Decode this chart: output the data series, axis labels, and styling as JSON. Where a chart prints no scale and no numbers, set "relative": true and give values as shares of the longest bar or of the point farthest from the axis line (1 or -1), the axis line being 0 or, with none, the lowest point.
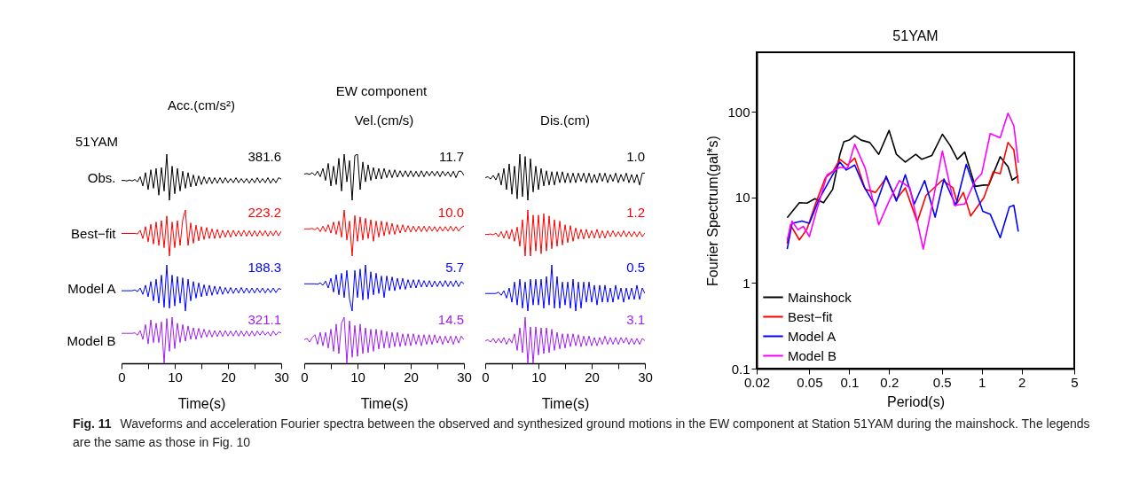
{
  "chart_data": [
    {
      "type": "other",
      "title": "EW component"
    },
    {
      "type": "line",
      "relative": true,
      "title": "Acc.(cm/s²)",
      "ylabel": "Obs.",
      "annotations": [
        "51YAM",
        "381.6"
      ],
      "tick_labels": false,
      "categories": [
        null,
        null,
        null,
        null,
        null,
        null,
        null,
        null,
        null,
        null,
        null,
        null,
        null,
        null,
        null,
        null,
        null,
        null,
        null,
        null,
        null,
        null,
        null,
        null,
        null,
        null,
        null,
        null,
        null,
        null,
        null,
        null,
        null,
        null,
        null,
        null,
        null,
        null,
        null,
        null,
        null,
        null,
        null,
        null,
        null,
        null,
        null,
        null,
        null,
        null,
        null,
        null,
        null,
        null,
        null,
        null,
        null,
        null,
        null,
        null,
        null
      ],
      "series": [
        {
          "color": "#000000",
          "values": [
            0.43,
            0.43,
            0.42,
            0.44,
            0.42,
            0.45,
            0.4,
            0.51,
            0.31,
            0.6,
            0.23,
            0.66,
            0.26,
            0.69,
            0.11,
            0.71,
            0.2,
            1,
            0,
            0.74,
            0.14,
            0.69,
            0.2,
            0.63,
            0.26,
            0.6,
            0.29,
            0.55,
            0.31,
            0.53,
            0.34,
            0.51,
            0.36,
            0.5,
            0.36,
            0.49,
            0.37,
            0.49,
            0.37,
            0.49,
            0.38,
            0.47,
            0.38,
            0.49,
            0.38,
            0.47,
            0.38,
            0.47,
            0.37,
            0.47,
            0.38,
            0.49,
            0.38,
            0.47,
            0.38,
            0.49,
            0.37,
            0.47,
            0.38,
            0.49,
            0.46
          ]
        }
      ]
    },
    {
      "type": "line",
      "relative": true,
      "title": "Vel.(cm/s)",
      "annotations": [
        "11.7"
      ],
      "tick_labels": false,
      "categories": [
        null,
        null,
        null,
        null,
        null,
        null,
        null,
        null,
        null,
        null,
        null,
        null,
        null,
        null,
        null,
        null,
        null,
        null,
        null,
        null,
        null,
        null,
        null,
        null,
        null,
        null,
        null,
        null,
        null,
        null,
        null,
        null,
        null,
        null,
        null,
        null,
        null,
        null,
        null,
        null,
        null,
        null,
        null,
        null,
        null,
        null,
        null,
        null,
        null,
        null,
        null,
        null,
        null,
        null,
        null,
        null,
        null,
        null,
        null,
        null,
        null
      ],
      "series": [
        {
          "color": "#000000",
          "values": [
            0.57,
            0.58,
            0.56,
            0.6,
            0.54,
            0.63,
            0.51,
            0.69,
            0.43,
            0.8,
            0.31,
            0.74,
            0.34,
            0.91,
            0.2,
            1,
            0.4,
            0.86,
            0,
            0.97,
            1,
            0.23,
            0.83,
            0.4,
            0.77,
            0.43,
            0.71,
            0.46,
            0.69,
            0.46,
            0.69,
            0.49,
            0.66,
            0.49,
            0.66,
            0.5,
            0.64,
            0.51,
            0.64,
            0.51,
            0.64,
            0.51,
            0.63,
            0.51,
            0.64,
            0.51,
            0.63,
            0.53,
            0.63,
            0.53,
            0.63,
            0.51,
            0.63,
            0.53,
            0.62,
            0.51,
            0.63,
            0.49,
            0.63,
            0.63,
            0.54
          ]
        }
      ]
    },
    {
      "type": "line",
      "relative": true,
      "title": "Dis.(cm)",
      "annotations": [
        "1.0"
      ],
      "tick_labels": false,
      "categories": [
        null,
        null,
        null,
        null,
        null,
        null,
        null,
        null,
        null,
        null,
        null,
        null,
        null,
        null,
        null,
        null,
        null,
        null,
        null,
        null,
        null,
        null,
        null,
        null,
        null,
        null,
        null,
        null,
        null,
        null,
        null,
        null,
        null,
        null,
        null,
        null,
        null,
        null,
        null,
        null,
        null,
        null,
        null,
        null,
        null,
        null,
        null,
        null,
        null,
        null,
        null,
        null,
        null,
        null,
        null,
        null,
        null,
        null,
        null,
        null,
        null
      ],
      "series": [
        {
          "color": "#000000",
          "values": [
            0.49,
            0.51,
            0.46,
            0.54,
            0.44,
            0.59,
            0.33,
            0.69,
            0.23,
            0.79,
            0.13,
            0.74,
            0.03,
            1,
            0.08,
            0.95,
            0,
            0.9,
            0.18,
            0.74,
            0.23,
            0.69,
            0.31,
            0.64,
            0.33,
            0.62,
            0.33,
            0.62,
            0.38,
            0.62,
            0.38,
            0.59,
            0.38,
            0.59,
            0.38,
            0.59,
            0.41,
            0.59,
            0.38,
            0.59,
            0.38,
            0.56,
            0.38,
            0.59,
            0.41,
            0.59,
            0.38,
            0.56,
            0.41,
            0.59,
            0.38,
            0.56,
            0.41,
            0.59,
            0.38,
            0.56,
            0.38,
            0.56,
            0.33,
            0.59,
            0.59
          ]
        }
      ]
    },
    {
      "type": "line",
      "relative": true,
      "ylabel": "Best−fit",
      "annotations": [
        "223.2"
      ],
      "tick_labels": false,
      "categories": [
        null,
        null,
        null,
        null,
        null,
        null,
        null,
        null,
        null,
        null,
        null,
        null,
        null,
        null,
        null,
        null,
        null,
        null,
        null,
        null,
        null,
        null,
        null,
        null,
        null,
        null,
        null,
        null,
        null,
        null,
        null,
        null,
        null,
        null,
        null,
        null,
        null,
        null,
        null,
        null,
        null,
        null,
        null,
        null,
        null,
        null,
        null,
        null,
        null,
        null,
        null,
        null,
        null,
        null,
        null,
        null,
        null,
        null,
        null,
        null,
        null
      ],
      "series": [
        {
          "color": "#ff0000",
          "values": [
            0.49,
            0.49,
            0.49,
            0.49,
            0.49,
            0.49,
            0.48,
            0.56,
            0.38,
            0.64,
            0.31,
            0.69,
            0.26,
            0.74,
            0.23,
            0.77,
            0.18,
            0.87,
            0,
            0.74,
            0.18,
            0.77,
            0.23,
            0.79,
            1,
            0.23,
            0.72,
            0.28,
            0.67,
            0.33,
            0.64,
            0.36,
            0.62,
            0.38,
            0.59,
            0.38,
            0.58,
            0.39,
            0.56,
            0.41,
            0.56,
            0.41,
            0.56,
            0.43,
            0.55,
            0.43,
            0.56,
            0.43,
            0.55,
            0.43,
            0.55,
            0.43,
            0.55,
            0.44,
            0.55,
            0.43,
            0.54,
            0.44,
            0.55,
            0.44,
            0.54
          ]
        }
      ]
    },
    {
      "type": "line",
      "relative": true,
      "annotations": [
        "10.0"
      ],
      "tick_labels": false,
      "categories": [
        null,
        null,
        null,
        null,
        null,
        null,
        null,
        null,
        null,
        null,
        null,
        null,
        null,
        null,
        null,
        null,
        null,
        null,
        null,
        null,
        null,
        null,
        null,
        null,
        null,
        null,
        null,
        null,
        null,
        null,
        null,
        null,
        null,
        null,
        null,
        null,
        null,
        null,
        null,
        null,
        null,
        null,
        null,
        null,
        null,
        null,
        null,
        null,
        null,
        null,
        null,
        null,
        null,
        null,
        null,
        null,
        null,
        null,
        null,
        null,
        null
      ],
      "series": [
        {
          "color": "#ff0000",
          "values": [
            0.59,
            0.59,
            0.59,
            0.6,
            0.57,
            0.62,
            0.53,
            0.65,
            0.53,
            0.68,
            0.5,
            0.74,
            0.47,
            0.76,
            0.41,
            1,
            0.35,
            0.76,
            0,
            0.88,
            0.32,
            0.85,
            0.35,
            0.82,
            0.38,
            0.79,
            0.32,
            0.76,
            0.41,
            0.76,
            0.44,
            0.74,
            0.47,
            0.71,
            0.47,
            0.68,
            0.5,
            0.68,
            0.52,
            0.66,
            0.52,
            0.65,
            0.53,
            0.65,
            0.53,
            0.65,
            0.53,
            0.65,
            0.54,
            0.64,
            0.53,
            0.64,
            0.54,
            0.64,
            0.54,
            0.65,
            0.54,
            0.64,
            0.54,
            0.62,
            0.65
          ]
        }
      ]
    },
    {
      "type": "line",
      "relative": true,
      "annotations": [
        "1.2"
      ],
      "tick_labels": false,
      "categories": [
        null,
        null,
        null,
        null,
        null,
        null,
        null,
        null,
        null,
        null,
        null,
        null,
        null,
        null,
        null,
        null,
        null,
        null,
        null,
        null,
        null,
        null,
        null,
        null,
        null,
        null,
        null,
        null,
        null,
        null,
        null,
        null,
        null,
        null,
        null,
        null,
        null,
        null,
        null,
        null,
        null,
        null,
        null,
        null,
        null,
        null,
        null,
        null,
        null,
        null,
        null,
        null,
        null,
        null,
        null,
        null,
        null,
        null,
        null,
        null,
        null
      ],
      "series": [
        {
          "color": "#ff0000",
          "values": [
            0.47,
            0.47,
            0.48,
            0.46,
            0.5,
            0.42,
            0.53,
            0.39,
            0.55,
            0.37,
            0.58,
            0.32,
            0.63,
            0.21,
            0.79,
            0,
            1,
            0,
            0.89,
            0.11,
            0.89,
            0.05,
            0.92,
            0.11,
            0.87,
            0.16,
            0.79,
            0.21,
            0.76,
            0.24,
            0.68,
            0.29,
            0.66,
            0.32,
            0.61,
            0.37,
            0.58,
            0.37,
            0.58,
            0.39,
            0.55,
            0.39,
            0.58,
            0.39,
            0.55,
            0.39,
            0.55,
            0.42,
            0.55,
            0.42,
            0.53,
            0.42,
            0.55,
            0.42,
            0.53,
            0.42,
            0.53,
            0.42,
            0.53,
            0.42,
            0.5
          ]
        }
      ]
    },
    {
      "type": "line",
      "relative": true,
      "ylabel": "Model A",
      "annotations": [
        "188.3"
      ],
      "tick_labels": false,
      "categories": [
        null,
        null,
        null,
        null,
        null,
        null,
        null,
        null,
        null,
        null,
        null,
        null,
        null,
        null,
        null,
        null,
        null,
        null,
        null,
        null,
        null,
        null,
        null,
        null,
        null,
        null,
        null,
        null,
        null,
        null,
        null,
        null,
        null,
        null,
        null,
        null,
        null,
        null,
        null,
        null,
        null,
        null,
        null,
        null,
        null,
        null,
        null,
        null,
        null,
        null,
        null,
        null,
        null,
        null,
        null,
        null,
        null,
        null,
        null,
        null,
        null
      ],
      "series": [
        {
          "color": "#0000ff",
          "values": [
            0.44,
            0.44,
            0.44,
            0.44,
            0.44,
            0.46,
            0.42,
            0.5,
            0.36,
            0.56,
            0.31,
            0.64,
            0.22,
            0.69,
            0.17,
            0.78,
            0.08,
            1,
            0.06,
            0.78,
            0.11,
            0.75,
            0.17,
            0.72,
            0,
            0.69,
            0.22,
            0.64,
            0.28,
            0.61,
            0.31,
            0.57,
            0.33,
            0.56,
            0.34,
            0.54,
            0.36,
            0.53,
            0.36,
            0.51,
            0.38,
            0.51,
            0.38,
            0.5,
            0.39,
            0.51,
            0.39,
            0.5,
            0.39,
            0.5,
            0.39,
            0.5,
            0.4,
            0.5,
            0.39,
            0.49,
            0.4,
            0.5,
            0.4,
            0.49,
            0.47
          ]
        }
      ]
    },
    {
      "type": "line",
      "relative": true,
      "annotations": [
        "5.7"
      ],
      "tick_labels": false,
      "categories": [
        null,
        null,
        null,
        null,
        null,
        null,
        null,
        null,
        null,
        null,
        null,
        null,
        null,
        null,
        null,
        null,
        null,
        null,
        null,
        null,
        null,
        null,
        null,
        null,
        null,
        null,
        null,
        null,
        null,
        null,
        null,
        null,
        null,
        null,
        null,
        null,
        null,
        null,
        null,
        null,
        null,
        null,
        null,
        null,
        null,
        null,
        null,
        null,
        null,
        null,
        null,
        null,
        null,
        null,
        null,
        null,
        null,
        null,
        null,
        null,
        null
      ],
      "series": [
        {
          "color": "#0000ff",
          "values": [
            0.59,
            0.59,
            0.59,
            0.59,
            0.59,
            0.58,
            0.61,
            0.56,
            0.65,
            0.5,
            0.71,
            0.41,
            0.79,
            0.35,
            0.82,
            0.29,
            0.88,
            0.26,
            0,
            0.88,
            0.29,
            0.91,
            0.24,
            1,
            0.26,
            0.85,
            0.35,
            0.82,
            0.38,
            0.76,
            0.29,
            0.76,
            0.44,
            0.74,
            0.44,
            0.71,
            0.47,
            0.71,
            0.47,
            0.68,
            0.5,
            0.68,
            0.5,
            0.68,
            0.52,
            0.66,
            0.52,
            0.66,
            0.52,
            0.65,
            0.53,
            0.65,
            0.53,
            0.66,
            0.53,
            0.65,
            0.53,
            0.66,
            0.53,
            0.64,
            0.59
          ]
        }
      ]
    },
    {
      "type": "line",
      "relative": true,
      "annotations": [
        "0.5"
      ],
      "tick_labels": false,
      "categories": [
        null,
        null,
        null,
        null,
        null,
        null,
        null,
        null,
        null,
        null,
        null,
        null,
        null,
        null,
        null,
        null,
        null,
        null,
        null,
        null,
        null,
        null,
        null,
        null,
        null,
        null,
        null,
        null,
        null,
        null,
        null,
        null,
        null,
        null,
        null,
        null,
        null,
        null,
        null,
        null,
        null,
        null,
        null,
        null,
        null,
        null,
        null,
        null,
        null,
        null,
        null,
        null,
        null,
        null,
        null,
        null,
        null,
        null,
        null,
        null,
        null
      ],
      "series": [
        {
          "color": "#0000ff",
          "values": [
            0.38,
            0.38,
            0.38,
            0.38,
            0.38,
            0.41,
            0.34,
            0.44,
            0.28,
            0.5,
            0.19,
            0.63,
            0.13,
            0.69,
            0.06,
            0.63,
            0,
            0.69,
            0.13,
            0.69,
            0.13,
            0.69,
            0.06,
            0.75,
            0.13,
            1,
            0.06,
            0.75,
            0.06,
            0.63,
            0.13,
            0.63,
            0.06,
            0.69,
            0,
            0.63,
            0.06,
            0.63,
            0.19,
            0.63,
            0.19,
            0.56,
            0.13,
            0.56,
            0.19,
            0.56,
            0.19,
            0.5,
            0.19,
            0.56,
            0.25,
            0.5,
            0.19,
            0.5,
            0.25,
            0.5,
            0.25,
            0.56,
            0.25,
            0.5,
            0.38
          ]
        }
      ]
    },
    {
      "type": "line",
      "relative": true,
      "ylabel": "Model B",
      "annotations": [
        "321.1"
      ],
      "xlim": [
        0,
        30
      ],
      "xticks": [
        0,
        {
          "value": 5,
          "label": null
        },
        10,
        {
          "value": 15,
          "label": null
        },
        20,
        {
          "value": 25,
          "label": null
        },
        30
      ],
      "xlabel": "Time(s)",
      "tick_labels": "x",
      "x": [
        0,
        0.5,
        1,
        1.5,
        2,
        2.5,
        3,
        3.5,
        4,
        4.5,
        5,
        5.5,
        6,
        6.5,
        7,
        7.5,
        8,
        8.5,
        9,
        9.5,
        10,
        10.5,
        11,
        11.5,
        12,
        12.5,
        13,
        13.5,
        14,
        14.5,
        15,
        15.5,
        16,
        16.5,
        17,
        17.5,
        18,
        18.5,
        19,
        19.5,
        20,
        20.5,
        21,
        21.5,
        22,
        22.5,
        23,
        23.5,
        24,
        24.5,
        25,
        25.5,
        26,
        26.5,
        27,
        27.5,
        28,
        28.5,
        29,
        29.5,
        30
      ],
      "series": [
        {
          "color": "#a020f0",
          "values": [
            0.65,
            0.65,
            0.65,
            0.65,
            0.65,
            0.66,
            0.61,
            0.71,
            0.52,
            0.84,
            0.42,
            0.94,
            0.45,
            0.87,
            0.45,
            0.9,
            0,
            0.97,
            0.26,
            1,
            0.32,
            0.87,
            0.45,
            0.84,
            0.48,
            0.81,
            0.52,
            0.77,
            0.52,
            0.76,
            0.55,
            0.74,
            0.57,
            0.72,
            0.57,
            0.71,
            0.58,
            0.71,
            0.58,
            0.71,
            0.59,
            0.7,
            0.59,
            0.71,
            0.59,
            0.7,
            0.59,
            0.7,
            0.59,
            0.7,
            0.59,
            0.7,
            0.61,
            0.7,
            0.61,
            0.68,
            0.59,
            0.7,
            0.61,
            0.68,
            0.66
          ]
        }
      ]
    },
    {
      "type": "line",
      "relative": true,
      "annotations": [
        "14.5"
      ],
      "xlim": [
        0,
        30
      ],
      "xticks": [
        0,
        {
          "value": 5,
          "label": null
        },
        10,
        {
          "value": 15,
          "label": null
        },
        20,
        {
          "value": 25,
          "label": null
        },
        30
      ],
      "xlabel": "Time(s)",
      "tick_labels": "x",
      "x": [
        0,
        0.5,
        1,
        1.5,
        2,
        2.5,
        3,
        3.5,
        4,
        4.5,
        5,
        5.5,
        6,
        6.5,
        7,
        7.5,
        8,
        8.5,
        9,
        9.5,
        10,
        10.5,
        11,
        11.5,
        12,
        12.5,
        13,
        13.5,
        14,
        14.5,
        15,
        15.5,
        16,
        16.5,
        17,
        17.5,
        18,
        18.5,
        19,
        19.5,
        20,
        20.5,
        21,
        21.5,
        22,
        22.5,
        23,
        23.5,
        24,
        24.5,
        25,
        25.5,
        26,
        26.5,
        27,
        27.5,
        28,
        28.5,
        29,
        29.5,
        30
      ],
      "series": [
        {
          "color": "#a020f0",
          "values": [
            0.51,
            0.54,
            0.46,
            0.56,
            0.62,
            0.41,
            0.67,
            0.38,
            0.67,
            0.33,
            0.74,
            0.26,
            0.85,
            0.21,
            0.87,
            1,
            0,
            0.92,
            0.13,
            0.82,
            0.15,
            0.85,
            0.21,
            0.77,
            0.23,
            0.74,
            0.26,
            0.74,
            0.31,
            0.72,
            0.33,
            0.69,
            0.33,
            0.67,
            0.36,
            0.67,
            0.36,
            0.64,
            0.38,
            0.64,
            0.38,
            0.64,
            0.41,
            0.62,
            0.38,
            0.62,
            0.41,
            0.62,
            0.41,
            0.62,
            0.44,
            0.59,
            0.41,
            0.59,
            0.44,
            0.59,
            0.41,
            0.59,
            0.44,
            0.59,
            0.51
          ]
        }
      ]
    },
    {
      "type": "line",
      "relative": true,
      "annotations": [
        "3.1"
      ],
      "xlim": [
        0,
        30
      ],
      "xticks": [
        0,
        {
          "value": 5,
          "label": null
        },
        10,
        {
          "value": 15,
          "label": null
        },
        20,
        {
          "value": 25,
          "label": null
        },
        30
      ],
      "xlabel": "Time(s)",
      "tick_labels": "x",
      "x": [
        0,
        0.5,
        1,
        1.5,
        2,
        2.5,
        3,
        3.5,
        4,
        4.5,
        5,
        5.5,
        6,
        6.5,
        7,
        7.5,
        8,
        8.5,
        9,
        9.5,
        10,
        10.5,
        11,
        11.5,
        12,
        12.5,
        13,
        13.5,
        14,
        14.5,
        15,
        15.5,
        16,
        16.5,
        17,
        17.5,
        18,
        18.5,
        19,
        19.5,
        20,
        20.5,
        21,
        21.5,
        22,
        22.5,
        23,
        23.5,
        24,
        24.5,
        25,
        25.5,
        26,
        26.5,
        27,
        27.5,
        28,
        28.5,
        29,
        29.5,
        30
      ],
      "series": [
        {
          "color": "#a020f0",
          "values": [
            0.49,
            0.51,
            0.46,
            0.54,
            0.44,
            0.54,
            0.44,
            0.56,
            0.41,
            0.54,
            0.44,
            0.64,
            0.28,
            0.77,
            0.23,
            1,
            0,
            0.79,
            0,
            0.79,
            0.18,
            0.77,
            0.21,
            0.77,
            0.23,
            0.74,
            0.28,
            0.67,
            0.31,
            0.64,
            0.33,
            0.64,
            0.36,
            0.64,
            0.38,
            0.62,
            0.36,
            0.59,
            0.38,
            0.59,
            0.38,
            0.56,
            0.38,
            0.56,
            0.41,
            0.59,
            0.41,
            0.56,
            0.41,
            0.56,
            0.41,
            0.56,
            0.44,
            0.56,
            0.41,
            0.54,
            0.41,
            0.54,
            0.41,
            0.54,
            0.49
          ]
        }
      ]
    },
    {
      "type": "line",
      "title": "51YAM",
      "xlabel": "Period(s)",
      "ylabel": "Fourier Spectrum(gal*s)",
      "log": "xy",
      "xlim": [
        0.02,
        5
      ],
      "ylim": [
        0.1,
        500
      ],
      "xticks": [
        0.02,
        0.05,
        0.1,
        0.2,
        0.5,
        1,
        2,
        5
      ],
      "yticks": [
        0.1,
        1,
        10,
        100
      ],
      "legend": "bottom left",
      "series": [
        {
          "name": "Mainshock",
          "color": "#000000",
          "x": [
            0.034,
            0.042,
            0.048,
            0.055,
            0.064,
            0.075,
            0.085,
            0.091,
            0.1,
            0.11,
            0.123,
            0.143,
            0.167,
            0.2,
            0.227,
            0.265,
            0.318,
            0.353,
            0.42,
            0.505,
            0.576,
            0.655,
            0.745,
            0.893,
            1.04,
            1.13,
            1.38,
            1.58,
            1.7,
            1.89
          ],
          "values": [
            5.8,
            8.7,
            8.6,
            9.7,
            8.7,
            12.5,
            32,
            45,
            47,
            53,
            47,
            44,
            32,
            61,
            32,
            26,
            32,
            28,
            31,
            55,
            41,
            28,
            34,
            13.5,
            14,
            14,
            30,
            23,
            16,
            18
          ]
        },
        {
          "name": "Best−fit",
          "color": "#ff0000",
          "x": [
            0.034,
            0.036,
            0.042,
            0.048,
            0.056,
            0.066,
            0.075,
            0.085,
            0.097,
            0.11,
            0.132,
            0.158,
            0.19,
            0.227,
            0.265,
            0.326,
            0.38,
            0.505,
            0.606,
            0.655,
            0.727,
            0.826,
            1.04,
            1.22,
            1.38,
            1.58,
            1.75,
            1.89
          ],
          "values": [
            2.9,
            4.8,
            3.2,
            4.3,
            8.7,
            17,
            20,
            28,
            24,
            29,
            12.5,
            11.5,
            17,
            9.5,
            13,
            5.2,
            10.6,
            16,
            13,
            8.7,
            11.5,
            6.1,
            10,
            20,
            19,
            44,
            36,
            14.6
          ]
        },
        {
          "name": "Model A",
          "color": "#0000ff",
          "x": [
            0.034,
            0.037,
            0.044,
            0.05,
            0.059,
            0.075,
            0.085,
            0.095,
            0.11,
            0.129,
            0.158,
            0.19,
            0.227,
            0.265,
            0.31,
            0.371,
            0.445,
            0.519,
            0.638,
            0.765,
            1.02,
            1.16,
            1.38,
            1.62,
            1.75,
            1.89
          ],
          "values": [
            2.5,
            5,
            5.3,
            5,
            9.5,
            18.5,
            26,
            21,
            24,
            13.5,
            7.9,
            17.8,
            9.1,
            18.5,
            8.4,
            15.8,
            5.9,
            16.5,
            8.1,
            24.5,
            6.9,
            6.4,
            3.4,
            7.8,
            8.1,
            4
          ]
        },
        {
          "name": "Model B",
          "color": "#ff00ff",
          "x": [
            0.034,
            0.037,
            0.041,
            0.045,
            0.05,
            0.056,
            0.068,
            0.085,
            0.097,
            0.11,
            0.132,
            0.167,
            0.2,
            0.239,
            0.287,
            0.362,
            0.42,
            0.505,
            0.622,
            0.745,
            0.893,
            1,
            1.16,
            1.38,
            1.58,
            1.75,
            1.89
          ],
          "values": [
            3.2,
            5.3,
            4.2,
            4.6,
            3.5,
            6.6,
            18.5,
            22.6,
            22,
            42,
            22,
            4.8,
            9.1,
            15.8,
            13,
            2.5,
            7.8,
            35,
            8.1,
            8.4,
            15.8,
            19,
            56,
            50,
            97,
            69,
            25.5
          ]
        }
      ]
    },
    {
      "type": "other",
      "annotations": [
        "Fig. 11",
        "Waveforms and acceleration Fourier spectra between the observed and synthesized ground motions in the EW component at Station 51YAM during the mainshock. The legends are the same as those in Fig. 10"
      ]
    }
  ]
}
